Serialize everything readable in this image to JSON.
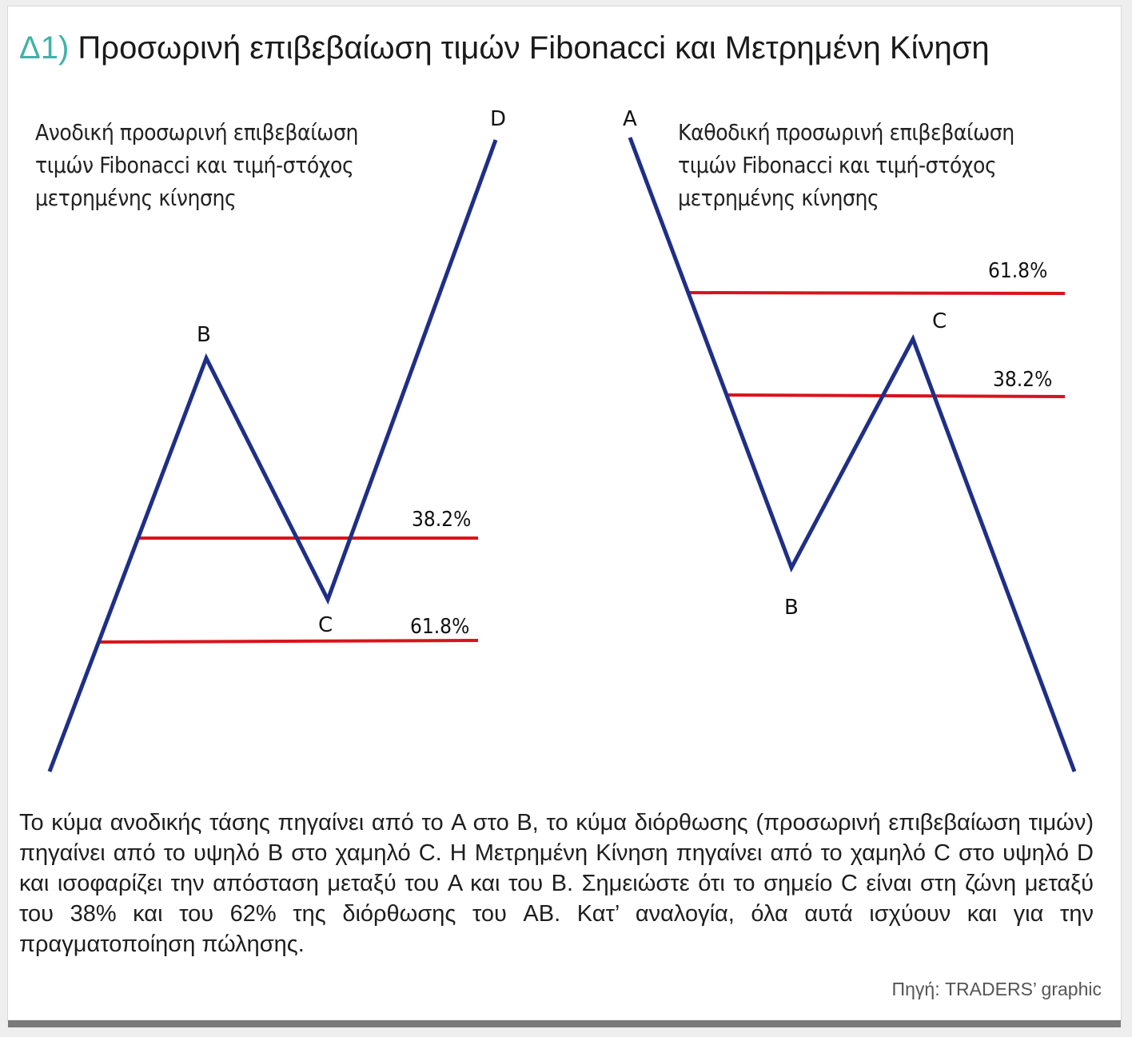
{
  "title": {
    "prefix": "Δ1)",
    "text": "Προσωρινή επιβεβαίωση τιμών Fibonacci και Μετρημένη Κίνηση"
  },
  "left_panel": {
    "subtitle_lines": [
      "Ανοδική προσωρινή επιβεβαίωση",
      "τιμών Fibonacci και τιμή-στόχος",
      "μετρημένης κίνησης"
    ],
    "points": {
      "B": "B",
      "C": "C",
      "D": "D"
    },
    "levels": [
      "38.2%",
      "61.8%"
    ]
  },
  "right_panel": {
    "subtitle_lines": [
      "Καθοδική προσωρινή επιβεβαίωση",
      "τιμών Fibonacci και τιμή-στόχος",
      "μετρημένης κίνησης"
    ],
    "points": {
      "A": "A",
      "B": "B",
      "C": "C"
    },
    "levels": [
      "61.8%",
      "38.2%"
    ]
  },
  "caption": "Το κύμα ανοδικής τάσης πηγαίνει από το A στο B, το κύμα διόρθωσης (προσωρινή επιβεβαίωση τιμών) πηγαίνει από το υψηλό B στο χαμηλό C. Η Μετρημένη Κίνηση πηγαίνει από το χαμηλό C στο υψηλό D και ισοφαρίζει την απόσταση μεταξύ του A και του B. Σημειώστε ότι το σημείο C είναι στη ζώνη μεταξύ του 38% και του 62% της διόρθωσης του AB. Κατ’ αναλογία, όλα αυτά ισχύουν και για την πραγματοποίηση πώλησης.",
  "source": "Πηγή: TRADERS’ graphic",
  "colors": {
    "wave": "#1f2f86",
    "level": "#d8141c",
    "accent": "#3fb3a6"
  }
}
